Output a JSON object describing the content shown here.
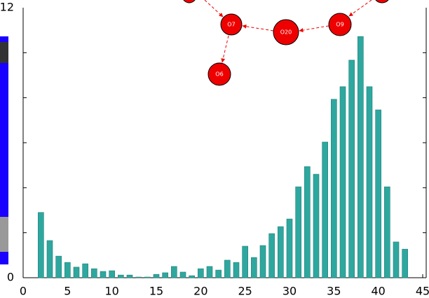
{
  "chart_data": {
    "type": "bar",
    "x": [
      2,
      3,
      4,
      5,
      6,
      7,
      8,
      9,
      10,
      11,
      12,
      13,
      14,
      15,
      16,
      17,
      18,
      19,
      20,
      21,
      22,
      23,
      24,
      25,
      26,
      27,
      28,
      29,
      30,
      31,
      32,
      33,
      34,
      35,
      36,
      37,
      38,
      39,
      40,
      41,
      42,
      43
    ],
    "values": [
      2.9,
      1.65,
      0.96,
      0.68,
      0.47,
      0.62,
      0.4,
      0.28,
      0.31,
      0.12,
      0.12,
      0.03,
      0.03,
      0.15,
      0.22,
      0.5,
      0.25,
      0.09,
      0.4,
      0.5,
      0.34,
      0.78,
      0.68,
      1.4,
      0.9,
      1.43,
      1.96,
      2.27,
      2.61,
      4.04,
      4.94,
      4.6,
      6.03,
      7.93,
      8.49,
      9.67,
      10.72,
      8.49,
      7.46,
      4.04,
      1.59,
      1.27
    ],
    "color": "#2ea79f",
    "xlim": [
      0,
      45
    ],
    "xticks": [
      0,
      5,
      10,
      15,
      20,
      25,
      30,
      35,
      40,
      45
    ],
    "ylim": [
      0,
      12
    ],
    "yticks": [
      0,
      12
    ],
    "yminorticks": [
      2,
      4,
      6,
      8,
      10
    ],
    "annotations": [
      "O7",
      "O20",
      "O9",
      "O6"
    ]
  }
}
